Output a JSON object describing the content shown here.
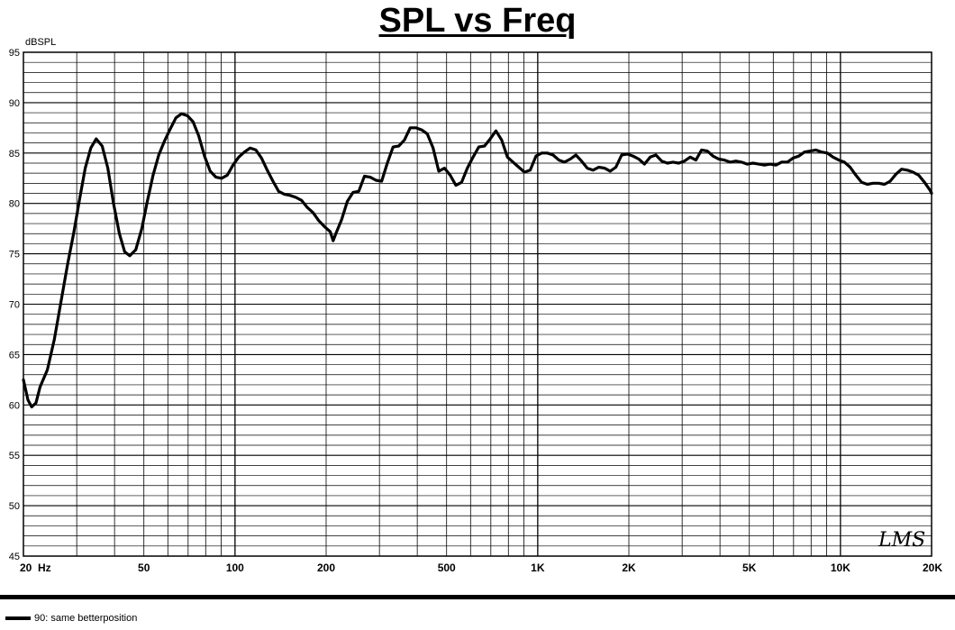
{
  "chart_data": {
    "type": "line",
    "title": "SPL vs Freq",
    "ylabel": "dBSPL",
    "xlabel": "",
    "x_scale": "log",
    "xlim": [
      20,
      20000
    ],
    "ylim": [
      45,
      95
    ],
    "grid": true,
    "y_ticks": [
      95,
      90,
      85,
      80,
      75,
      70,
      65,
      60,
      55,
      50,
      45
    ],
    "x_tick_labels": [
      {
        "x": 20,
        "label": "20  Hz"
      },
      {
        "x": 50,
        "label": "50"
      },
      {
        "x": 100,
        "label": "100"
      },
      {
        "x": 200,
        "label": "200"
      },
      {
        "x": 500,
        "label": "500"
      },
      {
        "x": 1000,
        "label": "1K"
      },
      {
        "x": 2000,
        "label": "2K"
      },
      {
        "x": 5000,
        "label": "5K"
      },
      {
        "x": 10000,
        "label": "10K"
      },
      {
        "x": 20000,
        "label": "20K"
      }
    ],
    "legend_position": "bottom-left",
    "series": [
      {
        "name": "90: same betterposition",
        "color": "#000000",
        "points": [
          [
            20,
            62.5
          ],
          [
            20.7,
            60.5
          ],
          [
            21.3,
            59.8
          ],
          [
            22,
            60.2
          ],
          [
            22.7,
            61.8
          ],
          [
            24,
            63.5
          ],
          [
            25.3,
            66.5
          ],
          [
            26.7,
            70.5
          ],
          [
            28,
            74
          ],
          [
            29.3,
            77
          ],
          [
            30.7,
            80.5
          ],
          [
            32,
            83.5
          ],
          [
            33.4,
            85.5
          ],
          [
            34.8,
            86.4
          ],
          [
            36.4,
            85.7
          ],
          [
            38,
            83.5
          ],
          [
            39.7,
            80
          ],
          [
            41.5,
            77
          ],
          [
            43.2,
            75.2
          ],
          [
            44.9,
            74.8
          ],
          [
            47,
            75.4
          ],
          [
            49.2,
            77.5
          ],
          [
            51.3,
            80.2
          ],
          [
            53.6,
            82.8
          ],
          [
            56,
            84.8
          ],
          [
            58.5,
            86.2
          ],
          [
            61.1,
            87.4
          ],
          [
            63.8,
            88.5
          ],
          [
            66.6,
            88.9
          ],
          [
            69.6,
            88.7
          ],
          [
            72.7,
            88.1
          ],
          [
            75.9,
            86.7
          ],
          [
            79.3,
            84.7
          ],
          [
            82.8,
            83.2
          ],
          [
            86.5,
            82.6
          ],
          [
            90.3,
            82.5
          ],
          [
            94.3,
            82.8
          ],
          [
            98.5,
            83.8
          ],
          [
            102.9,
            84.6
          ],
          [
            107.4,
            85.1
          ],
          [
            112.2,
            85.5
          ],
          [
            117.2,
            85.3
          ],
          [
            122.4,
            84.5
          ],
          [
            127.8,
            83.3
          ],
          [
            133.5,
            82.2
          ],
          [
            139.4,
            81.2
          ],
          [
            145.6,
            80.9
          ],
          [
            152.1,
            80.8
          ],
          [
            158.9,
            80.6
          ],
          [
            165.9,
            80.3
          ],
          [
            173.3,
            79.6
          ],
          [
            181,
            79.1
          ],
          [
            189,
            78.3
          ],
          [
            197.4,
            77.7
          ],
          [
            206.2,
            77.2
          ],
          [
            211,
            76.3
          ],
          [
            215.4,
            77
          ],
          [
            225,
            78.4
          ],
          [
            235,
            80.2
          ],
          [
            245.4,
            81.1
          ],
          [
            256.3,
            81.2
          ],
          [
            267.7,
            82.7
          ],
          [
            279.6,
            82.6
          ],
          [
            292.1,
            82.3
          ],
          [
            305,
            82.2
          ],
          [
            318.6,
            84
          ],
          [
            332.7,
            85.6
          ],
          [
            347.5,
            85.7
          ],
          [
            362.9,
            86.3
          ],
          [
            379.1,
            87.5
          ],
          [
            395.9,
            87.5
          ],
          [
            413.5,
            87.3
          ],
          [
            431.9,
            86.9
          ],
          [
            451.1,
            85.5
          ],
          [
            471.1,
            83.2
          ],
          [
            492,
            83.5
          ],
          [
            513.9,
            82.8
          ],
          [
            536.7,
            81.8
          ],
          [
            560.6,
            82.1
          ],
          [
            585.5,
            83.5
          ],
          [
            611.5,
            84.6
          ],
          [
            638.7,
            85.6
          ],
          [
            667.1,
            85.7
          ],
          [
            696.7,
            86.4
          ],
          [
            727.7,
            87.2
          ],
          [
            760,
            86.3
          ],
          [
            793.8,
            84.6
          ],
          [
            829.1,
            84.1
          ],
          [
            865.9,
            83.6
          ],
          [
            904.4,
            83.1
          ],
          [
            944.6,
            83.3
          ],
          [
            986.6,
            84.7
          ],
          [
            1030,
            85
          ],
          [
            1076,
            85
          ],
          [
            1124,
            84.8
          ],
          [
            1174,
            84.3
          ],
          [
            1226,
            84.1
          ],
          [
            1280,
            84.4
          ],
          [
            1337,
            84.8
          ],
          [
            1396,
            84.2
          ],
          [
            1458,
            83.5
          ],
          [
            1523,
            83.3
          ],
          [
            1591,
            83.6
          ],
          [
            1662,
            83.5
          ],
          [
            1735,
            83.2
          ],
          [
            1812,
            83.6
          ],
          [
            1893,
            84.8
          ],
          [
            1977,
            84.9
          ],
          [
            2065,
            84.7
          ],
          [
            2156,
            84.4
          ],
          [
            2252,
            83.9
          ],
          [
            2352,
            84.6
          ],
          [
            2457,
            84.8
          ],
          [
            2566,
            84.2
          ],
          [
            2680,
            84
          ],
          [
            2799,
            84.1
          ],
          [
            2923,
            84
          ],
          [
            3053,
            84.2
          ],
          [
            3189,
            84.6
          ],
          [
            3330,
            84.3
          ],
          [
            3478,
            85.3
          ],
          [
            3633,
            85.2
          ],
          [
            3794,
            84.7
          ],
          [
            3963,
            84.4
          ],
          [
            4139,
            84.3
          ],
          [
            4322,
            84.1
          ],
          [
            4514,
            84.2
          ],
          [
            4715,
            84.1
          ],
          [
            4924,
            83.9
          ],
          [
            5143,
            84
          ],
          [
            5372,
            83.9
          ],
          [
            5610,
            83.8
          ],
          [
            5859,
            83.9
          ],
          [
            6120,
            83.8
          ],
          [
            6391,
            84.1
          ],
          [
            6675,
            84.1
          ],
          [
            6972,
            84.5
          ],
          [
            7282,
            84.7
          ],
          [
            7605,
            85.1
          ],
          [
            7943,
            85.2
          ],
          [
            8296,
            85.3
          ],
          [
            8664,
            85.1
          ],
          [
            9049,
            85
          ],
          [
            9451,
            84.6
          ],
          [
            9871,
            84.3
          ],
          [
            10309,
            84.1
          ],
          [
            10767,
            83.6
          ],
          [
            11245,
            82.8
          ],
          [
            11745,
            82.1
          ],
          [
            12267,
            81.9
          ],
          [
            12811,
            82
          ],
          [
            13380,
            82
          ],
          [
            13975,
            81.9
          ],
          [
            14596,
            82.2
          ],
          [
            15244,
            82.9
          ],
          [
            15921,
            83.4
          ],
          [
            16628,
            83.3
          ],
          [
            17367,
            83.1
          ],
          [
            18138,
            82.8
          ],
          [
            18944,
            82.1
          ],
          [
            19785,
            81.3
          ],
          [
            20000,
            81
          ]
        ]
      }
    ]
  },
  "watermark": "LMS"
}
